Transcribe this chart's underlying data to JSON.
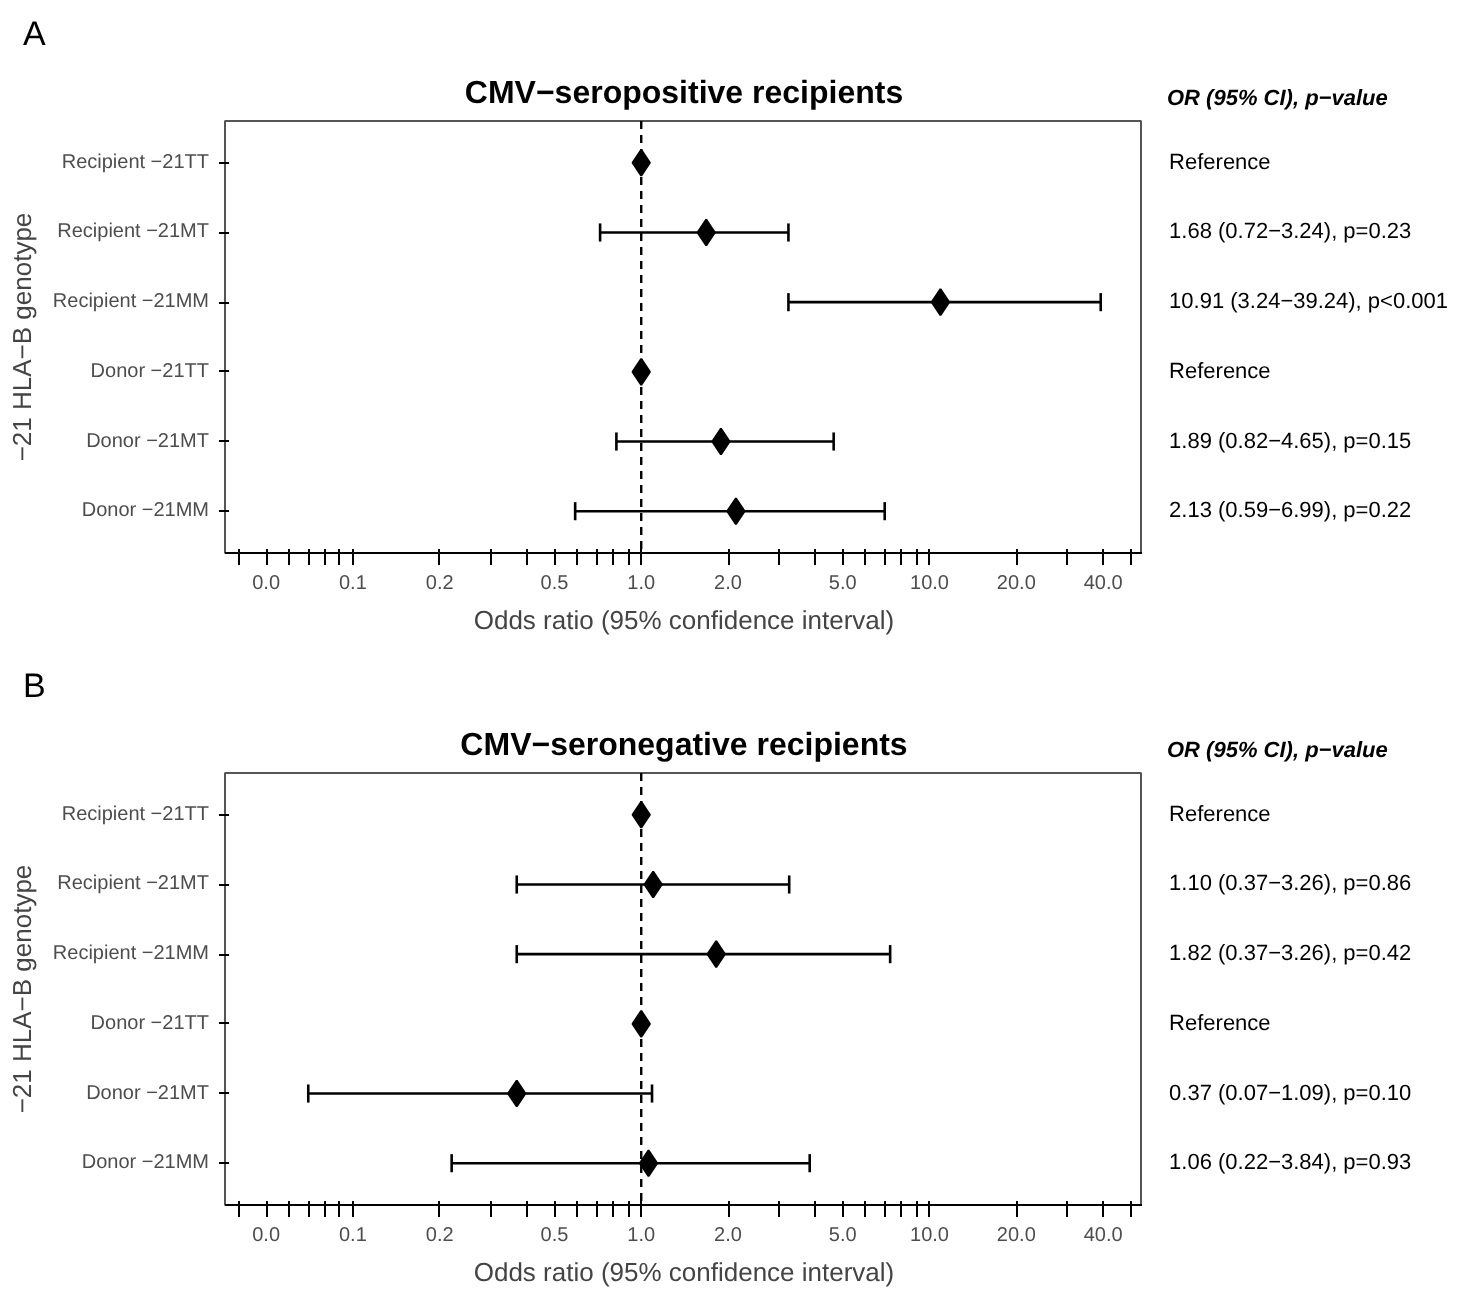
{
  "chart_data": [
    {
      "type": "scatter",
      "title": "CMV−seropositive recipients",
      "xlabel": "Odds ratio (95% confidence interval)",
      "ylabel": "−21 HLA−B genotype",
      "annotations": [
        "A",
        "OR (95% CI), p−value",
        "Reference",
        "1.68 (0.72−3.24), p=0.23",
        "10.91 (3.24−39.24), p<0.001",
        "Reference",
        "1.89 (0.82−4.65), p=0.15",
        "2.13 (0.59−6.99), p=0.22"
      ],
      "categories": [
        "Recipient −21TT",
        "Recipient −21MT",
        "Recipient −21MM",
        "Donor −21TT",
        "Donor −21MT",
        "Donor −21MM"
      ],
      "orientation": "horizontal",
      "log": "x",
      "xlim": [
        0.036,
        55
      ],
      "xticks": [
        {
          "value": 0.04,
          "label": null
        },
        {
          "value": 0.05,
          "label": "0.0"
        },
        {
          "value": 0.06,
          "label": null
        },
        {
          "value": 0.07,
          "label": null
        },
        {
          "value": 0.08,
          "label": null
        },
        {
          "value": 0.09,
          "label": null
        },
        {
          "value": 0.1,
          "label": "0.1"
        },
        {
          "value": 0.2,
          "label": "0.2"
        },
        {
          "value": 0.3,
          "label": null
        },
        {
          "value": 0.4,
          "label": null
        },
        {
          "value": 0.5,
          "label": "0.5"
        },
        {
          "value": 0.6,
          "label": null
        },
        {
          "value": 0.7,
          "label": null
        },
        {
          "value": 0.8,
          "label": null
        },
        {
          "value": 0.9,
          "label": null
        },
        {
          "value": 1,
          "label": "1.0"
        },
        {
          "value": 2,
          "label": "2.0"
        },
        {
          "value": 3,
          "label": null
        },
        {
          "value": 4,
          "label": null
        },
        {
          "value": 5,
          "label": "5.0"
        },
        {
          "value": 6,
          "label": null
        },
        {
          "value": 7,
          "label": null
        },
        {
          "value": 8,
          "label": null
        },
        {
          "value": 9,
          "label": null
        },
        {
          "value": 10,
          "label": "10.0"
        },
        {
          "value": 20,
          "label": "20.0"
        },
        {
          "value": 30,
          "label": null
        },
        {
          "value": 40,
          "label": "40.0"
        },
        {
          "value": 50,
          "label": null
        }
      ],
      "marker": "diamond",
      "grid": false,
      "color": "#000000",
      "values": [
        1,
        1.68,
        10.91,
        1,
        1.89,
        2.13
      ],
      "errors": [
        null,
        [
          0.72,
          3.24
        ],
        [
          3.24,
          39.24
        ],
        null,
        [
          0.82,
          4.65
        ],
        [
          0.59,
          6.99
        ]
      ],
      "ref_lines": [
        {
          "axis": "x",
          "value": 1,
          "line_style": "dashed",
          "color": "#000000"
        }
      ]
    },
    {
      "type": "scatter",
      "title": "CMV−seronegative recipients",
      "xlabel": "Odds ratio (95% confidence interval)",
      "ylabel": "−21 HLA−B genotype",
      "annotations": [
        "B",
        "OR (95% CI), p−value",
        "Reference",
        "1.10 (0.37−3.26), p=0.86",
        "1.82 (0.37−3.26), p=0.42",
        "Reference",
        "0.37 (0.07−1.09), p=0.10",
        "1.06 (0.22−3.84), p=0.93"
      ],
      "categories": [
        "Recipient −21TT",
        "Recipient −21MT",
        "Recipient −21MM",
        "Donor −21TT",
        "Donor −21MT",
        "Donor −21MM"
      ],
      "orientation": "horizontal",
      "log": "x",
      "xlim": [
        0.036,
        55
      ],
      "xticks": [
        {
          "value": 0.04,
          "label": null
        },
        {
          "value": 0.05,
          "label": "0.0"
        },
        {
          "value": 0.06,
          "label": null
        },
        {
          "value": 0.07,
          "label": null
        },
        {
          "value": 0.08,
          "label": null
        },
        {
          "value": 0.09,
          "label": null
        },
        {
          "value": 0.1,
          "label": "0.1"
        },
        {
          "value": 0.2,
          "label": "0.2"
        },
        {
          "value": 0.3,
          "label": null
        },
        {
          "value": 0.4,
          "label": null
        },
        {
          "value": 0.5,
          "label": "0.5"
        },
        {
          "value": 0.6,
          "label": null
        },
        {
          "value": 0.7,
          "label": null
        },
        {
          "value": 0.8,
          "label": null
        },
        {
          "value": 0.9,
          "label": null
        },
        {
          "value": 1,
          "label": "1.0"
        },
        {
          "value": 2,
          "label": "2.0"
        },
        {
          "value": 3,
          "label": null
        },
        {
          "value": 4,
          "label": null
        },
        {
          "value": 5,
          "label": "5.0"
        },
        {
          "value": 6,
          "label": null
        },
        {
          "value": 7,
          "label": null
        },
        {
          "value": 8,
          "label": null
        },
        {
          "value": 9,
          "label": null
        },
        {
          "value": 10,
          "label": "10.0"
        },
        {
          "value": 20,
          "label": "20.0"
        },
        {
          "value": 30,
          "label": null
        },
        {
          "value": 40,
          "label": "40.0"
        },
        {
          "value": 50,
          "label": null
        }
      ],
      "marker": "diamond",
      "grid": false,
      "color": "#000000",
      "values": [
        1,
        1.1,
        1.82,
        1,
        0.37,
        1.06
      ],
      "errors": [
        null,
        [
          0.37,
          3.26
        ],
        [
          0.37,
          7.3
        ],
        null,
        [
          0.07,
          1.09
        ],
        [
          0.22,
          3.84
        ]
      ],
      "ref_lines": [
        {
          "axis": "x",
          "value": 1,
          "line_style": "dashed",
          "color": "#000000"
        }
      ]
    }
  ]
}
